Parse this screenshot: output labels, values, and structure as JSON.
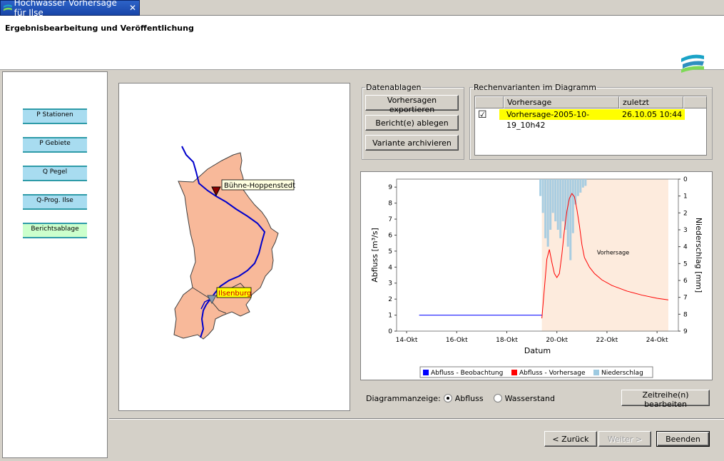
{
  "tab": {
    "title": "Hochwasser Vorhersage für Ilse",
    "close": "✕"
  },
  "header": {
    "title": "Ergebnisbearbeitung und Veröffentlichung"
  },
  "steps": [
    {
      "label": "P Stationen"
    },
    {
      "label": "P Gebiete"
    },
    {
      "label": "Q Pegel"
    },
    {
      "label": "Q-Prog. Ilse"
    },
    {
      "label": "Berichtsablage"
    }
  ],
  "map": {
    "stations": [
      {
        "label": "Bühne-Hoppenstedt"
      },
      {
        "label": "Ilsenburg"
      }
    ]
  },
  "datenablagen": {
    "legend": "Datenablagen",
    "buttons": [
      "Vorhersagen exportieren",
      "Bericht(e) ablegen",
      "Variante archivieren"
    ]
  },
  "rechenvarianten": {
    "legend": "Rechenvarianten im Diagramm",
    "columns": [
      "",
      "Vorhersage",
      "zuletzt geändert"
    ],
    "rows": [
      {
        "checked": "☑",
        "name": "Vorhersage-2005-10-19_10h42",
        "date": "26.10.05 10:44"
      }
    ]
  },
  "chart_data": {
    "type": "line",
    "xlabel": "Datum",
    "ylabel": "Abfluss [m³/s]",
    "y2label": "Niederschlag [mm]",
    "xticks": [
      "14-Okt",
      "16-Okt",
      "18-Okt",
      "20-Okt",
      "22-Okt",
      "24-Okt"
    ],
    "yticks": [
      "0",
      "1",
      "2",
      "3",
      "4",
      "5",
      "6",
      "7",
      "8",
      "9"
    ],
    "y2ticks": [
      "0",
      "1",
      "2",
      "3",
      "4",
      "5",
      "6",
      "7",
      "8",
      "9"
    ],
    "ylim": [
      0,
      9.5
    ],
    "y2lim": [
      0,
      9
    ],
    "annotation": "Vorhersage",
    "legend": [
      {
        "name": "Abfluss - Beobachtung",
        "color": "#0000ff"
      },
      {
        "name": "Abfluss - Vorhersage",
        "color": "#ff0000"
      },
      {
        "name": "Niederschlag",
        "color": "#9ecae1"
      }
    ],
    "series": [
      {
        "name": "Abfluss - Beobachtung",
        "x": [
          14.5,
          19.4
        ],
        "values": [
          1.0,
          1.0
        ]
      },
      {
        "name": "Abfluss - Vorhersage",
        "x": [
          19.4,
          19.6,
          19.7,
          19.8,
          19.9,
          20.0,
          20.1,
          20.2,
          20.3,
          20.4,
          20.5,
          20.6,
          20.7,
          20.8,
          20.9,
          21.0,
          21.1,
          21.3,
          21.5,
          21.8,
          22.2,
          22.8,
          23.4,
          24.0,
          24.45
        ],
        "values": [
          0.8,
          4.5,
          5.1,
          4.3,
          3.6,
          3.35,
          3.6,
          4.8,
          6.3,
          7.5,
          8.3,
          8.6,
          8.4,
          7.6,
          6.6,
          5.4,
          4.6,
          4.0,
          3.6,
          3.2,
          2.85,
          2.5,
          2.25,
          2.05,
          1.95
        ]
      },
      {
        "name": "Niederschlag",
        "x": [
          19.3,
          19.4,
          19.5,
          19.6,
          19.7,
          19.8,
          19.9,
          20.0,
          20.1,
          20.2,
          20.3,
          20.4,
          20.5,
          20.6,
          20.7,
          20.8,
          20.9,
          21.0,
          21.1
        ],
        "values": [
          1.0,
          2.0,
          3.5,
          4.0,
          3.0,
          2.0,
          2.5,
          3.0,
          3.5,
          2.5,
          3.0,
          4.0,
          4.8,
          3.2,
          1.5,
          1.0,
          0.8,
          0.5,
          0.4
        ]
      }
    ],
    "forecast_region": [
      19.4,
      24.45
    ]
  },
  "diagram": {
    "label": "Diagrammanzeige:",
    "options": [
      "Abfluss",
      "Wasserstand"
    ],
    "selected": "Abfluss"
  },
  "buttons": {
    "zeitreihe": "Zeitreihe(n) bearbeiten",
    "back": "< Zurück",
    "next": "Weiter >",
    "finish": "Beenden"
  }
}
